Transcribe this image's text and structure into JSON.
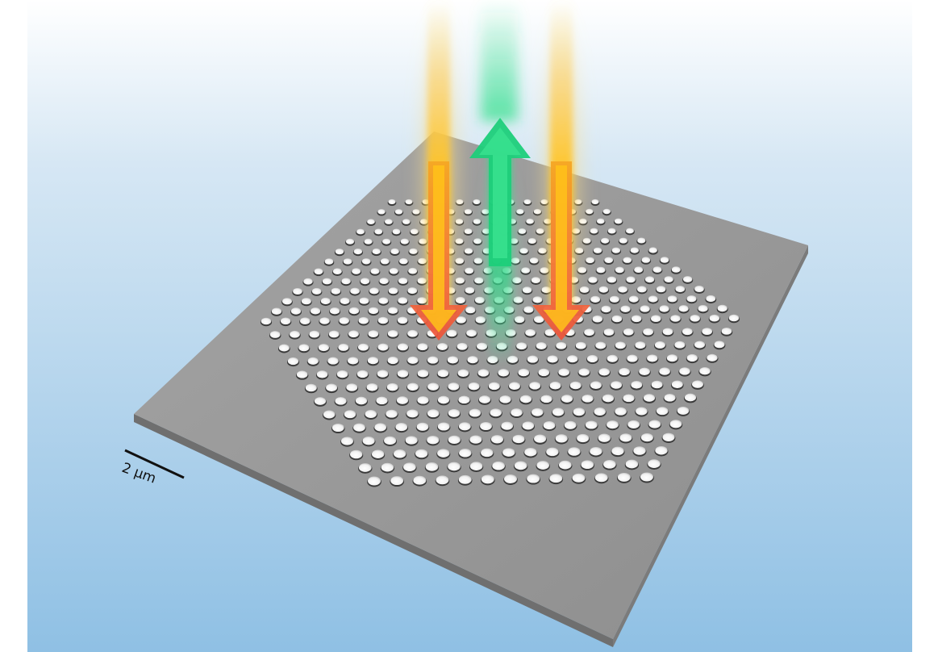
{
  "scale_bar": {
    "label": "2 μm"
  },
  "colors": {
    "background_top": "#ffffff",
    "background_bottom": "#8fc0e4",
    "slab": "#9a9a9a",
    "pump_arrow": "#f05a3c",
    "beam_yellow": "#ffc21a",
    "emission_arrow": "#1ecf7a"
  },
  "structure": {
    "lattice": "hexagonal",
    "hole_rows": 25
  },
  "beams": [
    {
      "kind": "pump",
      "direction": "down",
      "color_name": "red-orange"
    },
    {
      "kind": "emission",
      "direction": "up",
      "color_name": "green"
    },
    {
      "kind": "pump",
      "direction": "down",
      "color_name": "red-orange"
    }
  ]
}
